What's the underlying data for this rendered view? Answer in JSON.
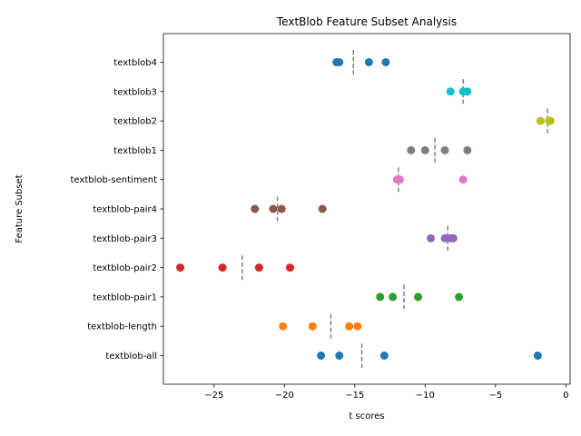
{
  "chart_data": {
    "type": "scatter",
    "title": "TextBlob Feature Subset Analysis",
    "xlabel": "t scores",
    "ylabel": "Feature Subset",
    "xlim": [
      -28.6,
      0.3
    ],
    "x_ticks": [
      -25,
      -20,
      -15,
      -10,
      -5,
      0
    ],
    "x_tick_labels": [
      "−25",
      "−20",
      "−15",
      "−10",
      "−5",
      "0"
    ],
    "grid": false,
    "legend": "none",
    "categories": [
      "textblob4",
      "textblob3",
      "textblob2",
      "textblob1",
      "textblob-sentiment",
      "textblob-pair4",
      "textblob-pair3",
      "textblob-pair2",
      "textblob-pair1",
      "textblob-length",
      "textblob-all"
    ],
    "series": [
      {
        "category": "textblob4",
        "color": "#1f77b4",
        "values": [
          -16.3,
          -16.1,
          -14.0,
          -12.8
        ],
        "mean": -15.1
      },
      {
        "category": "textblob3",
        "color": "#17becf",
        "values": [
          -8.2,
          -7.3,
          -7.0
        ],
        "mean": -7.3
      },
      {
        "category": "textblob2",
        "color": "#bcbd22",
        "values": [
          -1.8,
          -1.2,
          -1.1
        ],
        "mean": -1.3
      },
      {
        "category": "textblob1",
        "color": "#7f7f7f",
        "values": [
          -11.0,
          -10.0,
          -8.6,
          -7.0
        ],
        "mean": -9.3
      },
      {
        "category": "textblob-sentiment",
        "color": "#e377c2",
        "values": [
          -12.0,
          -11.8,
          -7.3
        ],
        "mean": -11.9
      },
      {
        "category": "textblob-pair4",
        "color": "#8c564b",
        "values": [
          -22.1,
          -20.8,
          -20.2,
          -17.3
        ],
        "mean": -20.5
      },
      {
        "category": "textblob-pair3",
        "color": "#9467bd",
        "values": [
          -9.6,
          -8.6,
          -8.2,
          -8.0
        ],
        "mean": -8.4
      },
      {
        "category": "textblob-pair2",
        "color": "#d62728",
        "values": [
          -27.4,
          -24.4,
          -21.8,
          -19.6
        ],
        "mean": -23.0
      },
      {
        "category": "textblob-pair1",
        "color": "#2ca02c",
        "values": [
          -13.2,
          -12.3,
          -10.5,
          -7.6
        ],
        "mean": -11.5
      },
      {
        "category": "textblob-length",
        "color": "#ff7f0e",
        "values": [
          -20.1,
          -18.0,
          -15.4,
          -14.8
        ],
        "mean": -16.7
      },
      {
        "category": "textblob-all",
        "color": "#1f77b4",
        "values": [
          -17.4,
          -16.1,
          -12.9,
          -2.0
        ],
        "mean": -14.5
      }
    ]
  }
}
